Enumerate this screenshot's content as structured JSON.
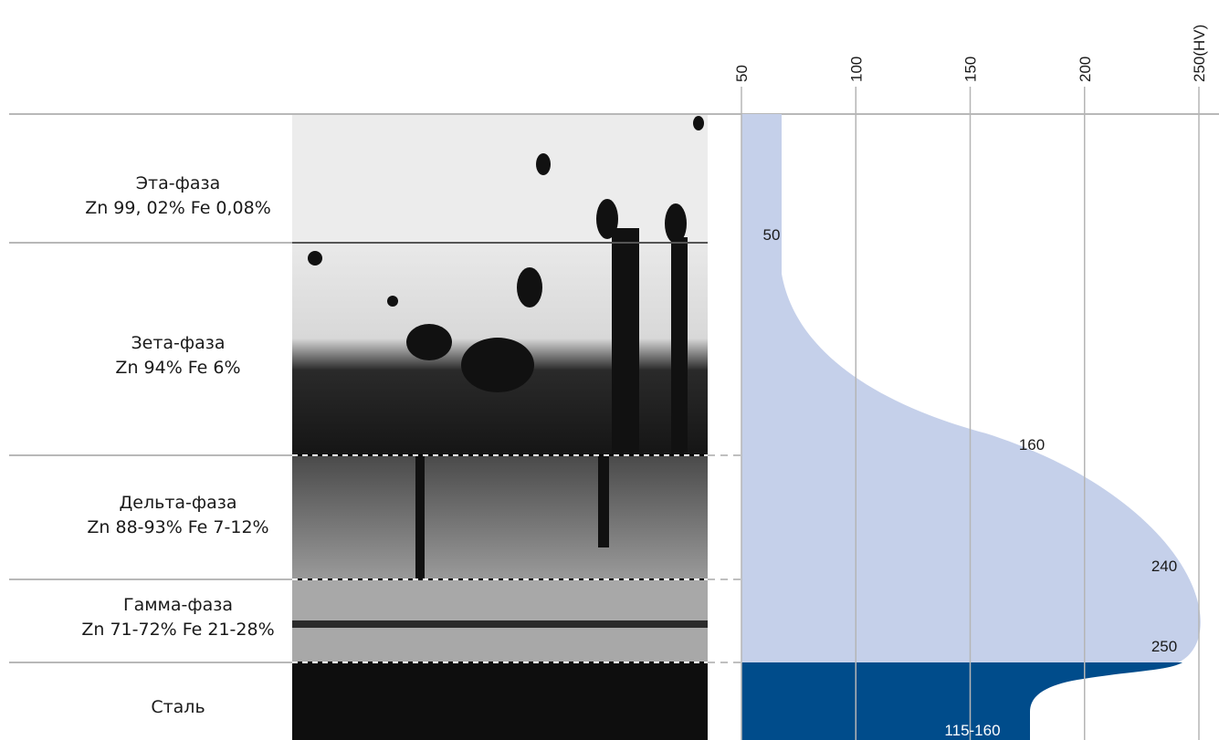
{
  "layers": [
    {
      "name": "Эта-фаза",
      "composition": "Zn 99, 02% Fe 0,08%",
      "hardness": "50"
    },
    {
      "name": "Зета-фаза",
      "composition": "Zn 94% Fe 6%",
      "hardness": "160"
    },
    {
      "name": "Дельта-фаза",
      "composition": "Zn 88-93% Fe 7-12%",
      "hardness": "240"
    },
    {
      "name": "Гамма-фаза",
      "composition": "Zn 71-72% Fe 21-28%",
      "hardness": "250"
    },
    {
      "name": "Сталь",
      "hardness": "115-160"
    }
  ],
  "hardness_scale": {
    "ticks": [
      50,
      100,
      150,
      200,
      {
        "value": 250,
        "label": "250(HV)"
      }
    ]
  }
}
